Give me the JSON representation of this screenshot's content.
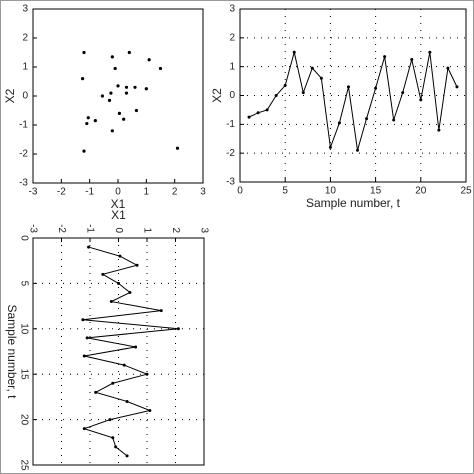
{
  "chart_data": [
    {
      "type": "scatter",
      "xlabel": "X1",
      "ylabel": "X2",
      "color": "#000000",
      "grid": false,
      "x": [
        -1.05,
        0.05,
        0.65,
        -0.55,
        0.0,
        0.4,
        -0.25,
        1.5,
        -1.25,
        2.1,
        -1.1,
        0.6,
        -1.2,
        0.2,
        1.0,
        -0.2,
        -0.8,
        0.3,
        1.1,
        -0.3,
        -1.2,
        -0.2,
        -0.1,
        0.3
      ],
      "values": [
        -0.75,
        -0.6,
        -0.5,
        0.0,
        0.35,
        1.5,
        0.1,
        0.95,
        0.6,
        -1.8,
        -0.95,
        0.3,
        -1.9,
        -0.8,
        0.25,
        1.35,
        -0.85,
        0.1,
        1.25,
        -0.15,
        1.5,
        -1.2,
        0.95,
        0.3
      ],
      "xlim": [
        -3,
        3
      ],
      "xticks": [
        -3,
        -2,
        -1,
        0,
        1,
        2,
        3
      ],
      "ylim": [
        -3,
        3
      ],
      "yticks": [
        -3,
        -2,
        -1,
        0,
        1,
        2,
        3
      ]
    },
    {
      "type": "line",
      "xlabel": "Sample number, t",
      "ylabel": "X2",
      "color": "#000000",
      "grid": true,
      "x": [
        1,
        2,
        3,
        4,
        5,
        6,
        7,
        8,
        9,
        10,
        11,
        12,
        13,
        14,
        15,
        16,
        17,
        18,
        19,
        20,
        21,
        22,
        23,
        24
      ],
      "values": [
        -0.75,
        -0.6,
        -0.5,
        0.0,
        0.35,
        1.5,
        0.1,
        0.95,
        0.6,
        -1.8,
        -0.95,
        0.3,
        -1.9,
        -0.8,
        0.25,
        1.35,
        -0.85,
        0.1,
        1.25,
        -0.15,
        1.5,
        -1.2,
        0.95,
        0.3
      ],
      "xlim": [
        0,
        25
      ],
      "xticks": [
        0,
        5,
        10,
        15,
        20,
        25
      ],
      "ylim": [
        -3,
        3
      ],
      "yticks": [
        -3,
        -2,
        -1,
        0,
        1,
        2,
        3
      ]
    },
    {
      "type": "line",
      "xlabel": "Sample number, t",
      "ylabel": "X1",
      "color": "#000000",
      "grid": true,
      "rotation": 90,
      "x": [
        1,
        2,
        3,
        4,
        5,
        6,
        7,
        8,
        9,
        10,
        11,
        12,
        13,
        14,
        15,
        16,
        17,
        18,
        19,
        20,
        21,
        22,
        23,
        24
      ],
      "values": [
        -1.05,
        0.05,
        0.65,
        -0.55,
        0.0,
        0.4,
        -0.25,
        1.5,
        -1.25,
        2.1,
        -1.1,
        0.6,
        -1.2,
        0.2,
        1.0,
        -0.2,
        -0.8,
        0.3,
        1.1,
        -0.3,
        -1.2,
        -0.2,
        -0.1,
        0.3
      ],
      "xlim": [
        0,
        25
      ],
      "xticks": [
        0,
        5,
        10,
        15,
        20,
        25
      ],
      "ylim": [
        -3,
        3
      ],
      "yticks": [
        -3,
        -2,
        -1,
        0,
        1,
        2,
        3
      ]
    }
  ]
}
